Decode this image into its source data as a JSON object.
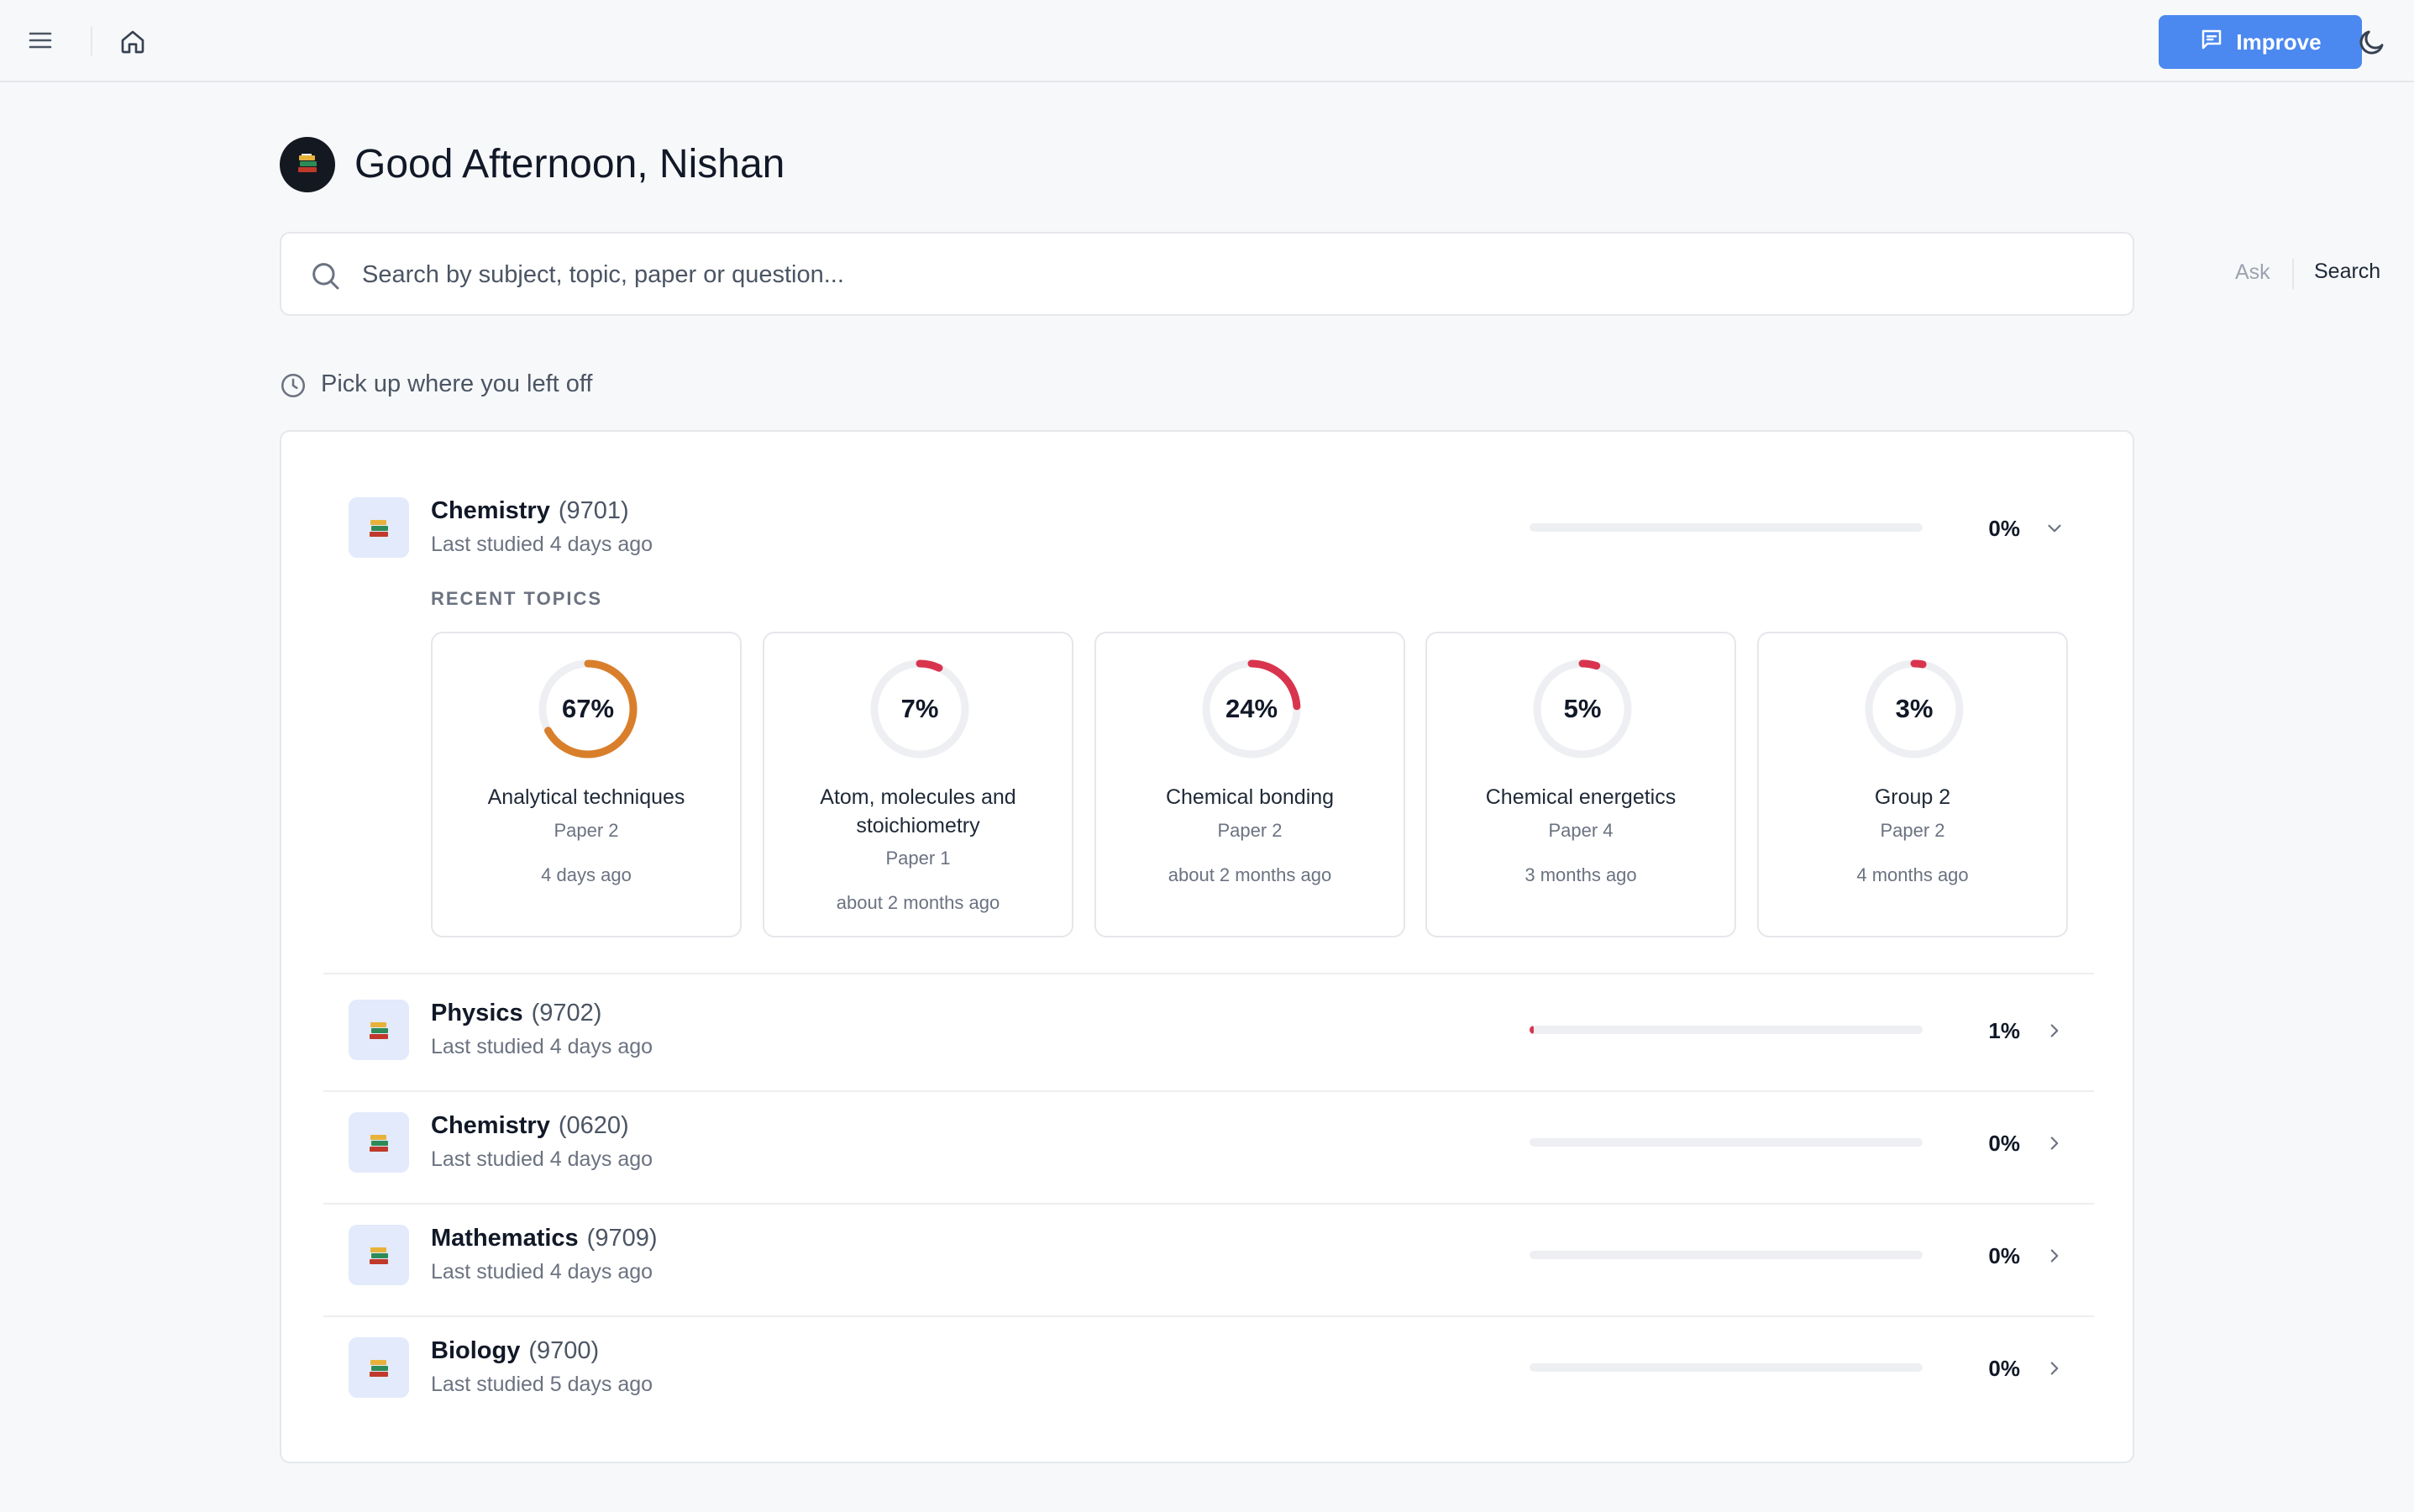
{
  "topbar": {
    "menu_icon": "menu-icon",
    "home_icon": "home-icon",
    "improve_label": "Improve",
    "theme_icon": "moon-icon"
  },
  "greeting": {
    "text": "Good Afternoon, Nishan"
  },
  "search": {
    "placeholder": "Search by subject, topic, paper or question...",
    "ask_label": "Ask",
    "search_label": "Search"
  },
  "section": {
    "label": "Pick up where you left off"
  },
  "expanded": {
    "name": "Chemistry",
    "code": "(9701)",
    "last_studied": "Last studied 4 days ago",
    "progress": 0,
    "progress_label": "0%",
    "recent_label": "RECENT TOPICS",
    "topics": [
      {
        "percent": 67,
        "label": "67%",
        "name": "Analytical techniques",
        "paper": "Paper 2",
        "time": "4 days ago",
        "color": "#d97f2b"
      },
      {
        "percent": 7,
        "label": "7%",
        "name": "Atom, molecules and stoichiometry",
        "paper": "Paper 1",
        "time": "about 2 months ago",
        "color": "#d9344e"
      },
      {
        "percent": 24,
        "label": "24%",
        "name": "Chemical bonding",
        "paper": "Paper 2",
        "time": "about 2 months ago",
        "color": "#d9344e"
      },
      {
        "percent": 5,
        "label": "5%",
        "name": "Chemical energetics",
        "paper": "Paper 4",
        "time": "3 months ago",
        "color": "#d9344e"
      },
      {
        "percent": 3,
        "label": "3%",
        "name": "Group 2",
        "paper": "Paper 2",
        "time": "4 months ago",
        "color": "#d9344e"
      }
    ]
  },
  "subjects": [
    {
      "name": "Physics",
      "code": "(9702)",
      "last_studied": "Last studied 4 days ago",
      "progress": 1,
      "progress_label": "1%"
    },
    {
      "name": "Chemistry",
      "code": "(0620)",
      "last_studied": "Last studied 4 days ago",
      "progress": 0,
      "progress_label": "0%"
    },
    {
      "name": "Mathematics",
      "code": "(9709)",
      "last_studied": "Last studied 4 days ago",
      "progress": 0,
      "progress_label": "0%"
    },
    {
      "name": "Biology",
      "code": "(9700)",
      "last_studied": "Last studied 5 days ago",
      "progress": 0,
      "progress_label": "0%"
    }
  ],
  "colors": {
    "accent": "#4b88f0",
    "progress_red": "#d9344e",
    "progress_orange": "#d97f2b",
    "ring_track": "#eeeff2"
  }
}
